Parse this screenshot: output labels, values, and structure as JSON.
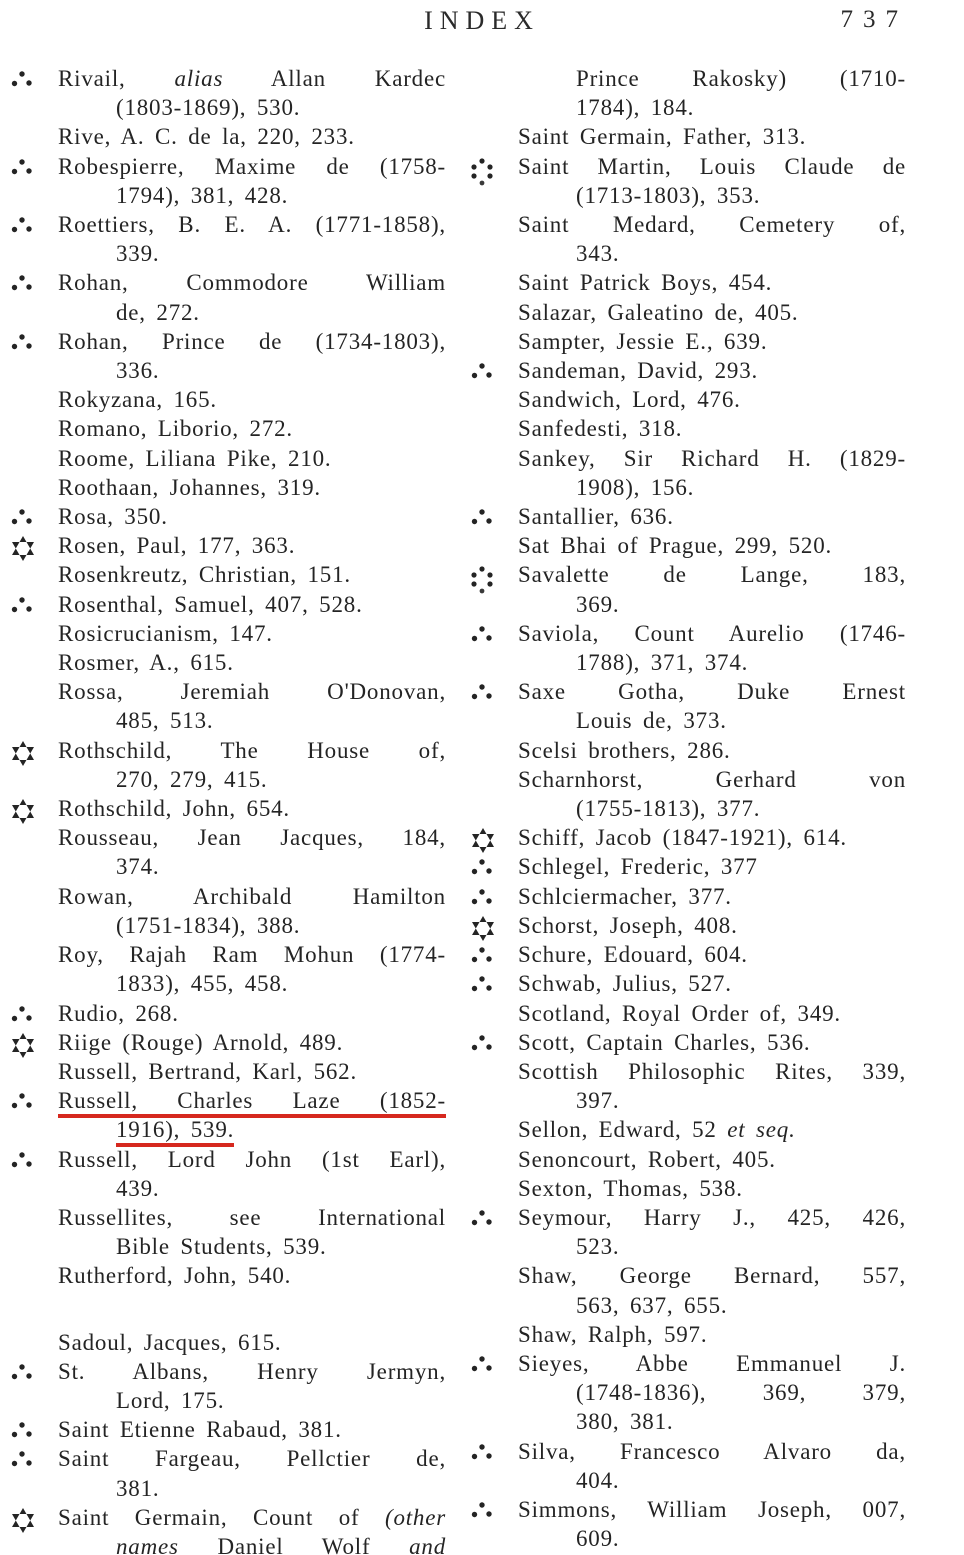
{
  "header": {
    "title": "INDEX",
    "page_number": "737"
  },
  "colors": {
    "underline_red": "#d6281e",
    "text": "#242424"
  },
  "columns": {
    "left": {
      "entries": [
        {
          "sym": "three-dots",
          "lines": [
            [
              {
                "t": "Rivail, "
              },
              {
                "t": "alias",
                "i": 1
              },
              {
                "t": " Allan Kardec"
              }
            ],
            "(1803-1869), 530."
          ]
        },
        {
          "lines": [
            "Rive, A. C. de la, 220, 233."
          ]
        },
        {
          "sym": "three-dots",
          "lines": [
            "Robespierre, Maxime de (1758-",
            "1794), 381, 428."
          ]
        },
        {
          "sym": "three-dots",
          "lines": [
            "Roettiers, B. E. A. (1771-1858),",
            "339."
          ]
        },
        {
          "sym": "three-dots",
          "lines": [
            "Rohan, Commodore William",
            "de, 272."
          ]
        },
        {
          "sym": "three-dots",
          "lines": [
            "Rohan, Prince de (1734-1803),",
            "336."
          ]
        },
        {
          "lines": [
            "Rokyzana, 165."
          ]
        },
        {
          "lines": [
            "Romano, Liborio, 272."
          ]
        },
        {
          "lines": [
            "Roome, Liliana Pike, 210."
          ]
        },
        {
          "lines": [
            "Roothaan, Johannes, 319."
          ]
        },
        {
          "sym": "three-dots",
          "lines": [
            "Rosa, 350."
          ]
        },
        {
          "sym": "star-of-david",
          "lines": [
            "Rosen, Paul, 177, 363."
          ]
        },
        {
          "lines": [
            "Rosenkreutz, Christian, 151."
          ]
        },
        {
          "sym": "three-dots",
          "lines": [
            "Rosenthal, Samuel, 407, 528."
          ]
        },
        {
          "lines": [
            "Rosicrucianism, 147."
          ]
        },
        {
          "lines": [
            "Rosmer, A., 615."
          ]
        },
        {
          "lines": [
            "Rossa, Jeremiah O'Donovan,",
            "485, 513."
          ]
        },
        {
          "sym": "star-of-david",
          "lines": [
            "Rothschild, The House of,",
            "270, 279, 415."
          ]
        },
        {
          "sym": "star-of-david",
          "lines": [
            "Rothschild, John, 654."
          ]
        },
        {
          "lines": [
            "Rousseau, Jean Jacques, 184,",
            "374."
          ]
        },
        {
          "lines": [
            "Rowan, Archibald Hamilton",
            "(1751-1834), 388."
          ]
        },
        {
          "lines": [
            "Roy, Rajah Ram Mohun (1774-",
            "1833), 455, 458."
          ]
        },
        {
          "sym": "three-dots",
          "lines": [
            "Rudio, 268."
          ]
        },
        {
          "sym": "star-of-david",
          "lines": [
            "Riige (Rouge) Arnold, 489."
          ]
        },
        {
          "lines": [
            "Russell, Bertrand, Karl, 562."
          ]
        },
        {
          "sym": "three-dots",
          "underline": true,
          "lines": [
            "Russell, Charles Laze (1852-",
            "1916), 539."
          ]
        },
        {
          "sym": "three-dots",
          "lines": [
            "Russell, Lord John (1st Earl),",
            "439."
          ]
        },
        {
          "lines": [
            "Russellites, see International",
            "Bible Students, 539."
          ]
        },
        {
          "lines": [
            "Rutherford, John, 540."
          ]
        },
        {
          "spacer": true
        },
        {
          "lines": [
            "Sadoul, Jacques, 615."
          ]
        },
        {
          "sym": "three-dots",
          "lines": [
            "St. Albans, Henry Jermyn,",
            "Lord, 175."
          ]
        },
        {
          "sym": "three-dots",
          "lines": [
            "Saint Etienne Rabaud, 381."
          ]
        },
        {
          "sym": "three-dots",
          "lines": [
            "Saint Fargeau, Pellctier de,",
            "381."
          ]
        },
        {
          "sym": "star-of-david",
          "justify_all": true,
          "lines": [
            [
              {
                "t": "Saint Germain, Count of "
              },
              {
                "t": "(other",
                "i": 1
              }
            ],
            [
              {
                "t": "names",
                "i": 1
              },
              {
                "t": " Daniel Wolf "
              },
              {
                "t": "and",
                "i": 1
              }
            ]
          ]
        }
      ]
    },
    "right": {
      "entries": [
        {
          "cont": true,
          "lines": [
            "Prince Rakosky) (1710-",
            "1784), 184."
          ]
        },
        {
          "lines": [
            "Saint Germain, Father, 313."
          ]
        },
        {
          "sym": "six-dots",
          "lines": [
            "Saint Martin, Louis Claude de",
            "(1713-1803), 353."
          ]
        },
        {
          "lines": [
            "Saint Medard, Cemetery of,",
            "343."
          ]
        },
        {
          "lines": [
            "Saint Patrick Boys, 454."
          ]
        },
        {
          "lines": [
            "Salazar, Galeatino de, 405."
          ]
        },
        {
          "lines": [
            "Sampter, Jessie E., 639."
          ]
        },
        {
          "sym": "three-dots",
          "lines": [
            "Sandeman, David, 293."
          ]
        },
        {
          "lines": [
            "Sandwich, Lord, 476."
          ]
        },
        {
          "lines": [
            "Sanfedesti, 318."
          ]
        },
        {
          "lines": [
            "Sankey, Sir Richard H. (1829-",
            "1908), 156."
          ]
        },
        {
          "sym": "three-dots",
          "lines": [
            "Santallier, 636."
          ]
        },
        {
          "lines": [
            "Sat Bhai of Prague, 299, 520."
          ]
        },
        {
          "sym": "six-dots",
          "lines": [
            "Savalette de Lange, 183,",
            "369."
          ]
        },
        {
          "sym": "three-dots",
          "lines": [
            "Saviola, Count Aurelio (1746-",
            "1788), 371, 374."
          ]
        },
        {
          "sym": "three-dots",
          "lines": [
            "Saxe Gotha, Duke Ernest",
            "Louis de, 373."
          ]
        },
        {
          "lines": [
            "Scelsi brothers, 286."
          ]
        },
        {
          "lines": [
            "Scharnhorst, Gerhard von",
            "(1755-1813), 377."
          ]
        },
        {
          "sym": "star-of-david",
          "lines": [
            "Schiff, Jacob (1847-1921), 614."
          ]
        },
        {
          "sym": "three-dots",
          "lines": [
            "Schlegel, Frederic, 377"
          ]
        },
        {
          "sym": "three-dots",
          "lines": [
            "Schlciermacher, 377."
          ]
        },
        {
          "sym": "star-of-david",
          "lines": [
            "Schorst, Joseph, 408."
          ]
        },
        {
          "sym": "three-dots",
          "lines": [
            "Schure, Edouard, 604."
          ]
        },
        {
          "sym": "three-dots",
          "lines": [
            "Schwab, Julius, 527."
          ]
        },
        {
          "lines": [
            "Scotland, Royal Order of, 349."
          ]
        },
        {
          "sym": "three-dots",
          "lines": [
            "Scott, Captain Charles, 536."
          ]
        },
        {
          "lines": [
            "Scottish Philosophic Rites, 339,",
            "397."
          ]
        },
        {
          "lines": [
            [
              {
                "t": "Sellon, Edward, 52 "
              },
              {
                "t": "et seq.",
                "i": 1
              }
            ]
          ]
        },
        {
          "lines": [
            "Senoncourt, Robert, 405."
          ]
        },
        {
          "lines": [
            "Sexton, Thomas, 538."
          ]
        },
        {
          "sym": "three-dots",
          "lines": [
            "Seymour, Harry J., 425, 426,",
            "523."
          ]
        },
        {
          "lines": [
            "Shaw, George Bernard, 557,",
            "563, 637, 655."
          ]
        },
        {
          "lines": [
            "Shaw, Ralph, 597."
          ]
        },
        {
          "sym": "three-dots",
          "lines": [
            "Sieyes, Abbe Emmanuel J.",
            "(1748-1836), 369, 379,",
            "380, 381."
          ]
        },
        {
          "sym": "three-dots",
          "lines": [
            "Silva, Francesco Alvaro da,",
            "404."
          ]
        },
        {
          "sym": "three-dots",
          "lines": [
            "Simmons, William Joseph, 007,",
            "609."
          ]
        }
      ]
    }
  }
}
